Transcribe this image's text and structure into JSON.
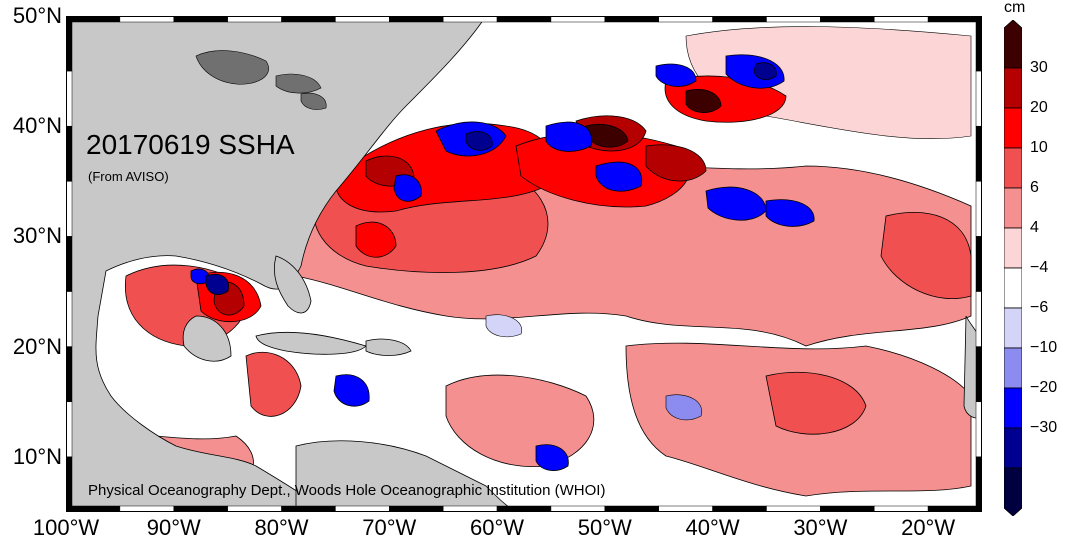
{
  "map": {
    "title": "20170619 SSHA",
    "source_note": "(From AVISO)",
    "credit": "Physical Oceanography Dept., Woods Hole Oceanographic Institution (WHOI)",
    "lon_range": [
      -100,
      -15
    ],
    "lat_range": [
      5,
      50
    ],
    "lat_ticks": [
      {
        "label": "50°N",
        "lat": 50
      },
      {
        "label": "40°N",
        "lat": 40
      },
      {
        "label": "30°N",
        "lat": 30
      },
      {
        "label": "20°N",
        "lat": 20
      },
      {
        "label": "10°N",
        "lat": 10
      }
    ],
    "lon_ticks": [
      {
        "label": "100°W",
        "lon": -100
      },
      {
        "label": "90°W",
        "lon": -90
      },
      {
        "label": "80°W",
        "lon": -80
      },
      {
        "label": "70°W",
        "lon": -70
      },
      {
        "label": "60°W",
        "lon": -60
      },
      {
        "label": "50°W",
        "lon": -50
      },
      {
        "label": "40°W",
        "lon": -40
      },
      {
        "label": "30°W",
        "lon": -30
      },
      {
        "label": "20°W",
        "lon": -20
      }
    ],
    "land_color": "#c8c8c8",
    "ocean_base_color": "#ffffff"
  },
  "colorbar": {
    "unit": "cm",
    "levels": [
      {
        "label": "30",
        "value": 30
      },
      {
        "label": "20",
        "value": 20
      },
      {
        "label": "10",
        "value": 10
      },
      {
        "label": "6",
        "value": 6
      },
      {
        "label": "4",
        "value": 4
      },
      {
        "label": "−4",
        "value": -4
      },
      {
        "label": "−6",
        "value": -6
      },
      {
        "label": "−10",
        "value": -10
      },
      {
        "label": "−20",
        "value": -20
      },
      {
        "label": "−30",
        "value": -30
      }
    ],
    "colors": [
      "#3c0000",
      "#b40000",
      "#ff0000",
      "#f05050",
      "#f49090",
      "#fcd6d6",
      "#ffffff",
      "#d4d4f8",
      "#8c8cf0",
      "#0000ff",
      "#000090",
      "#000040"
    ]
  }
}
